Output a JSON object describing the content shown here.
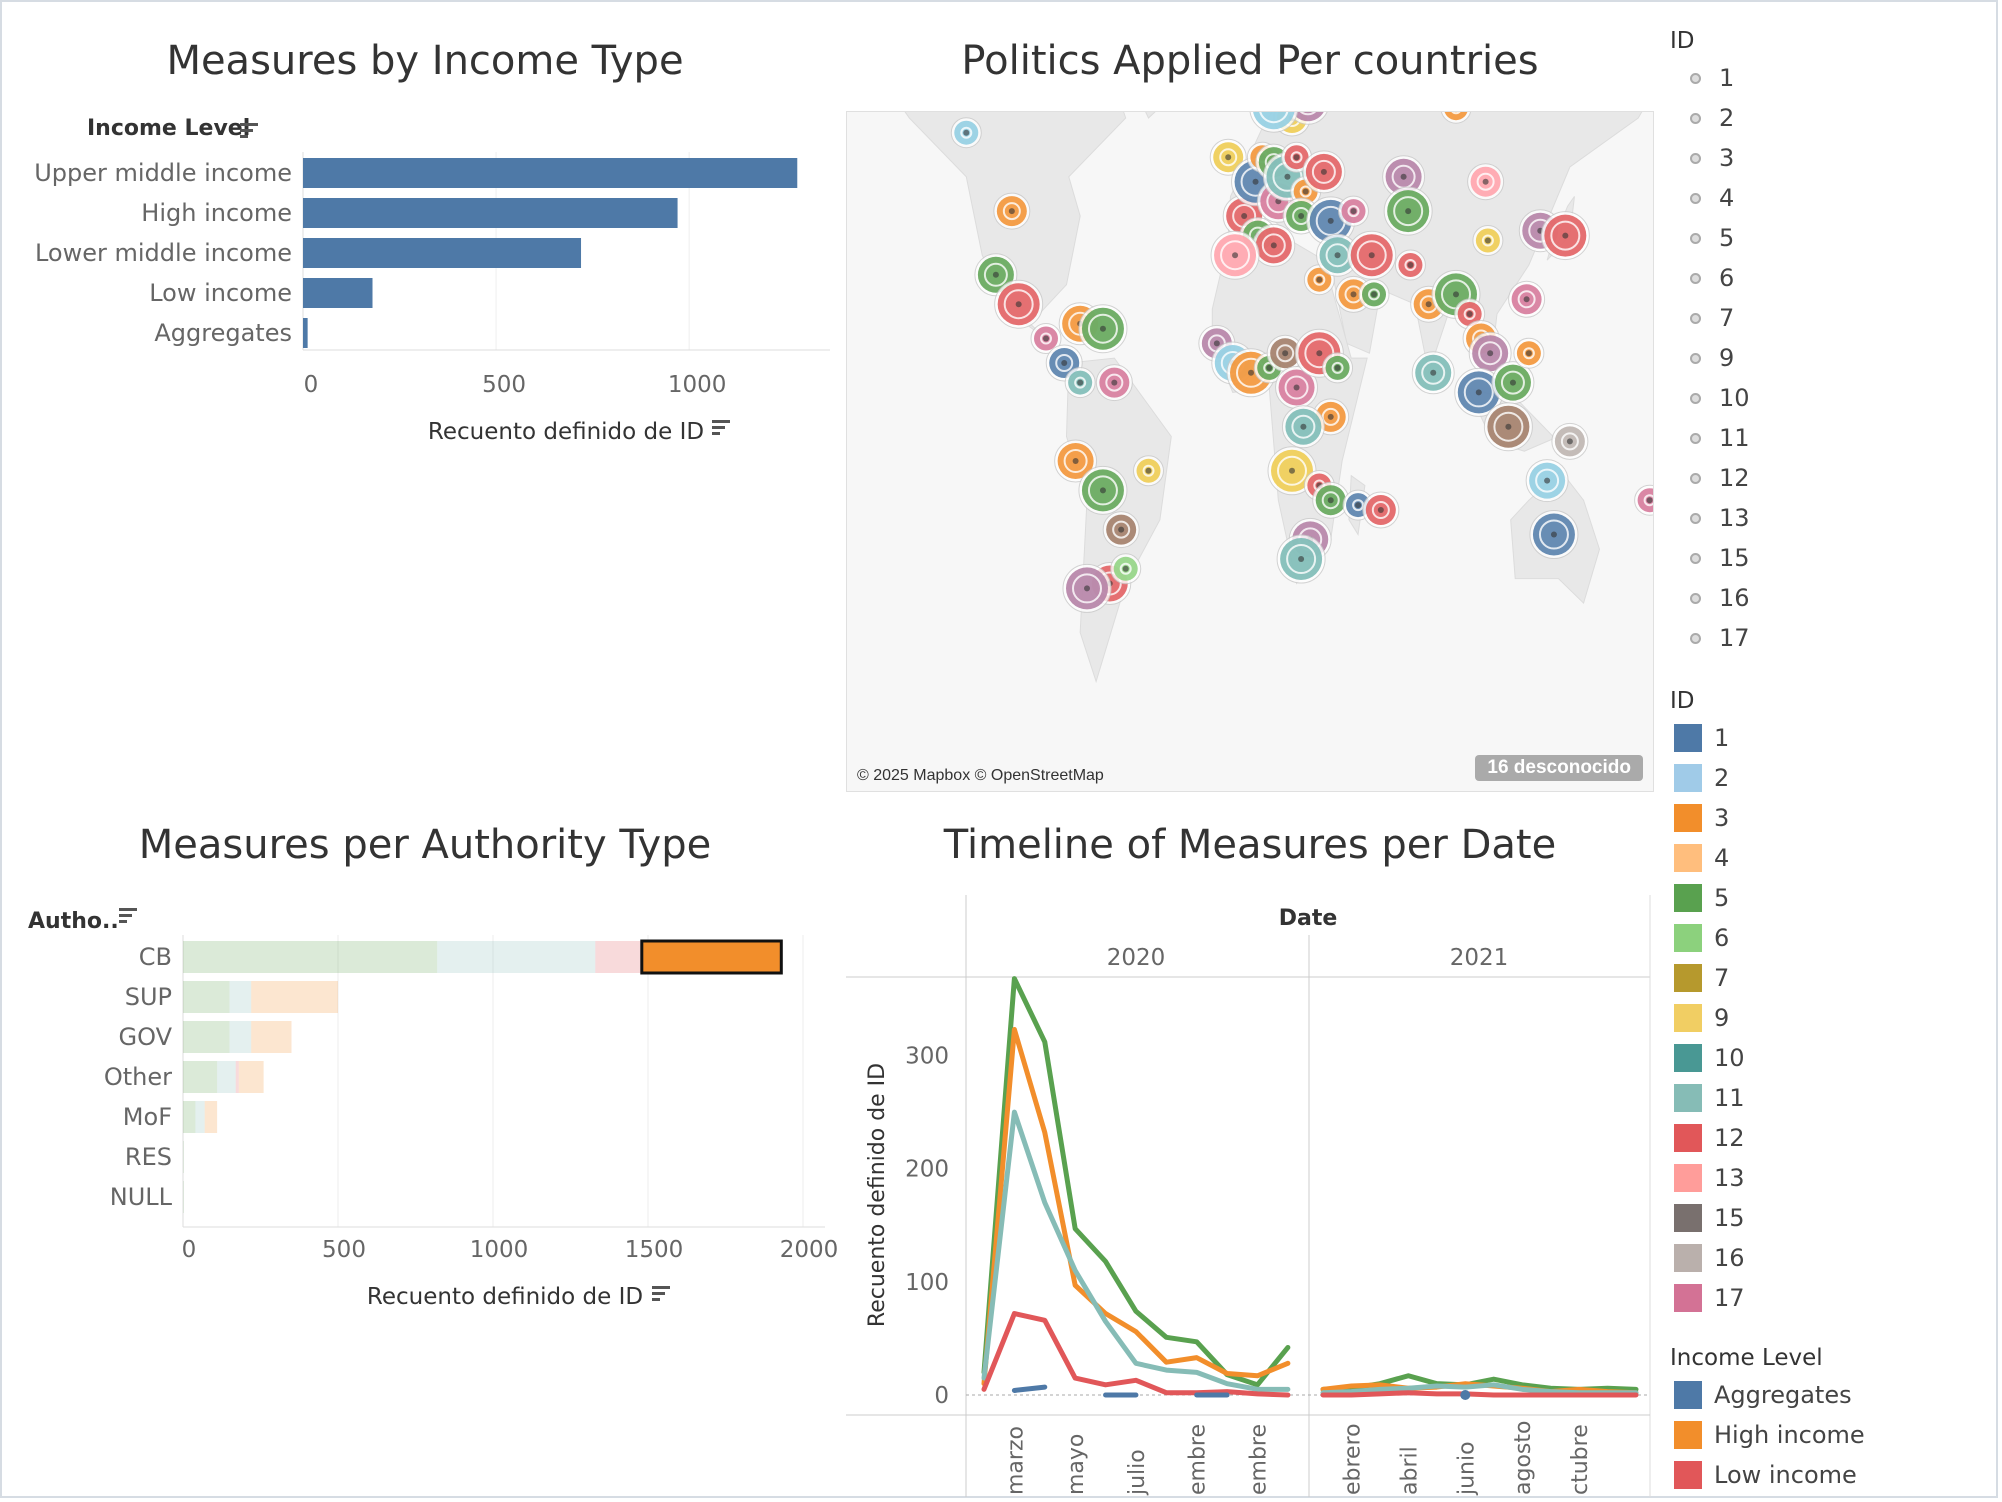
{
  "colors": {
    "bar": "#4e79a7",
    "grid": "#eeeeee",
    "axis": "#dddddd",
    "label": "#666666",
    "land": "#e8e8e8",
    "ocean": "#f7f7f7"
  },
  "panels": {
    "income": {
      "title": "Measures by Income Type"
    },
    "map": {
      "title": "Politics Applied Per countries",
      "credit": "© 2025 Mapbox © OpenStreetMap",
      "unknown_badge": "16 desconocido"
    },
    "authority": {
      "title": "Measures per Authority Type"
    },
    "timeline": {
      "title": "Timeline of Measures per Date"
    }
  },
  "chart_data": [
    {
      "id": "income",
      "type": "bar",
      "orientation": "horizontal",
      "title": "Measures by Income Type",
      "category_header": "Income Level",
      "xlabel": "Recuento definido de ID",
      "categories": [
        "Upper middle income",
        "High income",
        "Lower middle income",
        "Low income",
        "Aggregates"
      ],
      "values": [
        1280,
        970,
        720,
        180,
        12
      ],
      "xlim": [
        0,
        1300
      ],
      "xticks": [
        0,
        500,
        1000
      ],
      "tick_labels": [
        "0",
        "500",
        "1000"
      ],
      "color": "#4e79a7"
    },
    {
      "id": "authority",
      "type": "bar",
      "orientation": "horizontal",
      "stacked": true,
      "title": "Measures per Authority Type",
      "category_header": "Autho..",
      "xlabel": "Recuento definido de ID",
      "categories": [
        "CB",
        "SUP",
        "GOV",
        "Other",
        "MoF",
        "RES",
        "NULL"
      ],
      "series": [
        {
          "name": "Upper middle income",
          "color": "#59a14f",
          "values": [
            820,
            150,
            150,
            110,
            40,
            2,
            2
          ]
        },
        {
          "name": "Lower middle income",
          "color": "#86bcb6",
          "values": [
            510,
            70,
            70,
            60,
            30,
            0,
            0
          ]
        },
        {
          "name": "Low income",
          "color": "#e15759",
          "values": [
            150,
            0,
            0,
            10,
            0,
            0,
            0
          ]
        },
        {
          "name": "High income",
          "color": "#f28e2b",
          "values": [
            450,
            280,
            130,
            80,
            40,
            0,
            0
          ]
        }
      ],
      "highlighted": {
        "category": "CB",
        "series": "High income"
      },
      "xlim": [
        0,
        2000
      ],
      "xticks": [
        0,
        500,
        1000,
        1500,
        2000
      ],
      "tick_labels": [
        "0",
        "500",
        "1000",
        "1500",
        "2000"
      ]
    },
    {
      "id": "timeline",
      "type": "line",
      "title": "Timeline of Measures per Date",
      "column_header": "Date",
      "ylabel": "Recuento definido de ID",
      "ylim": [
        0,
        380
      ],
      "yticks": [
        0,
        100,
        200,
        300
      ],
      "ytick_labels": [
        "0",
        "100",
        "200",
        "300"
      ],
      "years": [
        "2020",
        "2021"
      ],
      "x": [
        "2020-02",
        "2020-03",
        "2020-04",
        "2020-05",
        "2020-06",
        "2020-07",
        "2020-08",
        "2020-09",
        "2020-10",
        "2020-11",
        "2020-12",
        "2021-01",
        "2021-02",
        "2021-03",
        "2021-04",
        "2021-05",
        "2021-06",
        "2021-07",
        "2021-08",
        "2021-09",
        "2021-10",
        "2021-11",
        "2021-12"
      ],
      "xtick_labels": {
        "2020": [
          "marzo",
          "mayo",
          "julio",
          "embre",
          "embre"
        ],
        "2021": [
          "ebrero",
          "abril",
          "junio",
          "agosto",
          "ctubre"
        ]
      },
      "xtick_months": {
        "2020": [
          "2020-03",
          "2020-05",
          "2020-07",
          "2020-09",
          "2020-11"
        ],
        "2021": [
          "2021-02",
          "2021-04",
          "2021-06",
          "2021-08",
          "2021-10"
        ]
      },
      "series": [
        {
          "name": "Upper middle income",
          "color": "#59a14f",
          "values": [
            20,
            368,
            312,
            147,
            118,
            74,
            51,
            47,
            18,
            9,
            42,
            5,
            6,
            10,
            17,
            10,
            9,
            14,
            9,
            6,
            5,
            6,
            5
          ]
        },
        {
          "name": "High income",
          "color": "#f28e2b",
          "values": [
            10,
            323,
            232,
            97,
            72,
            56,
            29,
            33,
            19,
            17,
            28,
            5,
            8,
            9,
            6,
            7,
            10,
            8,
            6,
            3,
            5,
            3,
            2
          ]
        },
        {
          "name": "Lower middle income",
          "color": "#86bcb6",
          "values": [
            15,
            250,
            170,
            110,
            65,
            28,
            22,
            20,
            10,
            5,
            5,
            2,
            3,
            5,
            6,
            8,
            7,
            9,
            5,
            3,
            2,
            2,
            2
          ]
        },
        {
          "name": "Low income",
          "color": "#e15759",
          "values": [
            5,
            72,
            66,
            15,
            9,
            13,
            2,
            2,
            3,
            1,
            0,
            0,
            0,
            1,
            2,
            1,
            1,
            0,
            0,
            0,
            0,
            0,
            0
          ]
        },
        {
          "name": "Aggregates",
          "color": "#4e79a7",
          "values": [
            null,
            4,
            7,
            null,
            0,
            0,
            null,
            0,
            0,
            null,
            null,
            null,
            null,
            null,
            null,
            null,
            0,
            null,
            null,
            null,
            null,
            null,
            null
          ]
        }
      ]
    }
  ],
  "map_points": [
    {
      "lon": -125,
      "lat": 57,
      "color": "#8ccbe0"
    },
    {
      "lon": -105,
      "lat": 41,
      "color": "#f28e2b"
    },
    {
      "lon": -112,
      "lat": 28,
      "color": "#59a14f"
    },
    {
      "lon": -102,
      "lat": 22,
      "color": "#e15759"
    },
    {
      "lon": -90,
      "lat": 15,
      "color": "#d37295"
    },
    {
      "lon": -82,
      "lat": 10,
      "color": "#4e79a7"
    },
    {
      "lon": -75,
      "lat": 18,
      "color": "#f28e2b"
    },
    {
      "lon": -65,
      "lat": 17,
      "color": "#59a14f"
    },
    {
      "lon": -75,
      "lat": 6,
      "color": "#76b7b2"
    },
    {
      "lon": -60,
      "lat": 6,
      "color": "#d37295"
    },
    {
      "lon": -77,
      "lat": -10,
      "color": "#f28e2b"
    },
    {
      "lon": -65,
      "lat": -16,
      "color": "#59a14f"
    },
    {
      "lon": -45,
      "lat": -12,
      "color": "#edc948"
    },
    {
      "lon": -57,
      "lat": -24,
      "color": "#9c755f"
    },
    {
      "lon": -62,
      "lat": -35,
      "color": "#e15759"
    },
    {
      "lon": -72,
      "lat": -36,
      "color": "#b07aa1"
    },
    {
      "lon": -55,
      "lat": -32,
      "color": "#8cd17d"
    },
    {
      "lon": -10,
      "lat": 52,
      "color": "#edc948"
    },
    {
      "lon": -3,
      "lat": 40,
      "color": "#e15759"
    },
    {
      "lon": 2,
      "lat": 47,
      "color": "#4e79a7"
    },
    {
      "lon": 5,
      "lat": 52,
      "color": "#f28e2b"
    },
    {
      "lon": 10,
      "lat": 51,
      "color": "#59a14f"
    },
    {
      "lon": 12,
      "lat": 43,
      "color": "#d37295"
    },
    {
      "lon": 16,
      "lat": 48,
      "color": "#76b7b2"
    },
    {
      "lon": 20,
      "lat": 52,
      "color": "#e15759"
    },
    {
      "lon": 18,
      "lat": 60,
      "color": "#edc948"
    },
    {
      "lon": 25,
      "lat": 63,
      "color": "#b07aa1"
    },
    {
      "lon": 10,
      "lat": 62,
      "color": "#8ccbe0"
    },
    {
      "lon": 24,
      "lat": 45,
      "color": "#f28e2b"
    },
    {
      "lon": 22,
      "lat": 40,
      "color": "#59a14f"
    },
    {
      "lon": 32,
      "lat": 49,
      "color": "#e15759"
    },
    {
      "lon": 35,
      "lat": 39,
      "color": "#4e79a7"
    },
    {
      "lon": 45,
      "lat": 41,
      "color": "#d37295"
    },
    {
      "lon": 3,
      "lat": 36,
      "color": "#59a14f"
    },
    {
      "lon": 10,
      "lat": 34,
      "color": "#e15759"
    },
    {
      "lon": -7,
      "lat": 32,
      "color": "#ff9da7"
    },
    {
      "lon": 30,
      "lat": 27,
      "color": "#f28e2b"
    },
    {
      "lon": 45,
      "lat": 24,
      "color": "#f28e2b"
    },
    {
      "lon": 38,
      "lat": 32,
      "color": "#76b7b2"
    },
    {
      "lon": 53,
      "lat": 32,
      "color": "#e15759"
    },
    {
      "lon": 54,
      "lat": 24,
      "color": "#59a14f"
    },
    {
      "lon": -15,
      "lat": 14,
      "color": "#b07aa1"
    },
    {
      "lon": -8,
      "lat": 10,
      "color": "#8ccbe0"
    },
    {
      "lon": 0,
      "lat": 8,
      "color": "#f28e2b"
    },
    {
      "lon": 8,
      "lat": 9,
      "color": "#59a14f"
    },
    {
      "lon": 15,
      "lat": 12,
      "color": "#9c755f"
    },
    {
      "lon": 20,
      "lat": 5,
      "color": "#d37295"
    },
    {
      "lon": 30,
      "lat": 12,
      "color": "#e15759"
    },
    {
      "lon": 38,
      "lat": 9,
      "color": "#59a14f"
    },
    {
      "lon": 35,
      "lat": -1,
      "color": "#f28e2b"
    },
    {
      "lon": 23,
      "lat": -3,
      "color": "#76b7b2"
    },
    {
      "lon": 18,
      "lat": -12,
      "color": "#edc948"
    },
    {
      "lon": 30,
      "lat": -15,
      "color": "#e15759"
    },
    {
      "lon": 35,
      "lat": -18,
      "color": "#59a14f"
    },
    {
      "lon": 26,
      "lat": -26,
      "color": "#b07aa1"
    },
    {
      "lon": 22,
      "lat": -30,
      "color": "#76b7b2"
    },
    {
      "lon": 47,
      "lat": -19,
      "color": "#4e79a7"
    },
    {
      "lon": 57,
      "lat": -20,
      "color": "#e15759"
    },
    {
      "lon": 67,
      "lat": 48,
      "color": "#b07aa1"
    },
    {
      "lon": 69,
      "lat": 41,
      "color": "#59a14f"
    },
    {
      "lon": 70,
      "lat": 30,
      "color": "#e15759"
    },
    {
      "lon": 78,
      "lat": 22,
      "color": "#f28e2b"
    },
    {
      "lon": 80,
      "lat": 8,
      "color": "#76b7b2"
    },
    {
      "lon": 90,
      "lat": 24,
      "color": "#59a14f"
    },
    {
      "lon": 96,
      "lat": 20,
      "color": "#e15759"
    },
    {
      "lon": 101,
      "lat": 15,
      "color": "#f28e2b"
    },
    {
      "lon": 105,
      "lat": 12,
      "color": "#b07aa1"
    },
    {
      "lon": 100,
      "lat": 4,
      "color": "#4e79a7"
    },
    {
      "lon": 104,
      "lat": 35,
      "color": "#edc948"
    },
    {
      "lon": 103,
      "lat": 47,
      "color": "#ff9da7"
    },
    {
      "lon": 115,
      "lat": 6,
      "color": "#59a14f"
    },
    {
      "lon": 113,
      "lat": -3,
      "color": "#9c755f"
    },
    {
      "lon": 122,
      "lat": 12,
      "color": "#f28e2b"
    },
    {
      "lon": 121,
      "lat": 23,
      "color": "#d37295"
    },
    {
      "lon": 127,
      "lat": 37,
      "color": "#b07aa1"
    },
    {
      "lon": 138,
      "lat": 36,
      "color": "#e15759"
    },
    {
      "lon": 90,
      "lat": 62,
      "color": "#f28e2b"
    },
    {
      "lon": 140,
      "lat": -6,
      "color": "#bab0ac"
    },
    {
      "lon": 130,
      "lat": -14,
      "color": "#8ccbe0"
    },
    {
      "lon": 133,
      "lat": -25,
      "color": "#4e79a7"
    },
    {
      "lon": 175,
      "lat": -18,
      "color": "#d37295"
    }
  ],
  "legends": {
    "id_shape": {
      "title": "ID",
      "items": [
        "1",
        "2",
        "3",
        "4",
        "5",
        "6",
        "7",
        "9",
        "10",
        "11",
        "12",
        "13",
        "15",
        "16",
        "17"
      ]
    },
    "id_color": {
      "title": "ID",
      "items": [
        {
          "label": "1",
          "color": "#4e79a7"
        },
        {
          "label": "2",
          "color": "#a0cbe8"
        },
        {
          "label": "3",
          "color": "#f28e2b"
        },
        {
          "label": "4",
          "color": "#ffbe7d"
        },
        {
          "label": "5",
          "color": "#59a14f"
        },
        {
          "label": "6",
          "color": "#8cd17d"
        },
        {
          "label": "7",
          "color": "#b6992d"
        },
        {
          "label": "9",
          "color": "#f1ce63"
        },
        {
          "label": "10",
          "color": "#499894"
        },
        {
          "label": "11",
          "color": "#86bcb6"
        },
        {
          "label": "12",
          "color": "#e15759"
        },
        {
          "label": "13",
          "color": "#ff9d9a"
        },
        {
          "label": "15",
          "color": "#79706e"
        },
        {
          "label": "16",
          "color": "#bab0ac"
        },
        {
          "label": "17",
          "color": "#d37295"
        }
      ]
    },
    "income": {
      "title": "Income Level",
      "items": [
        {
          "label": "Aggregates",
          "color": "#4e79a7"
        },
        {
          "label": "High income",
          "color": "#f28e2b"
        },
        {
          "label": "Low income",
          "color": "#e15759"
        }
      ]
    }
  }
}
